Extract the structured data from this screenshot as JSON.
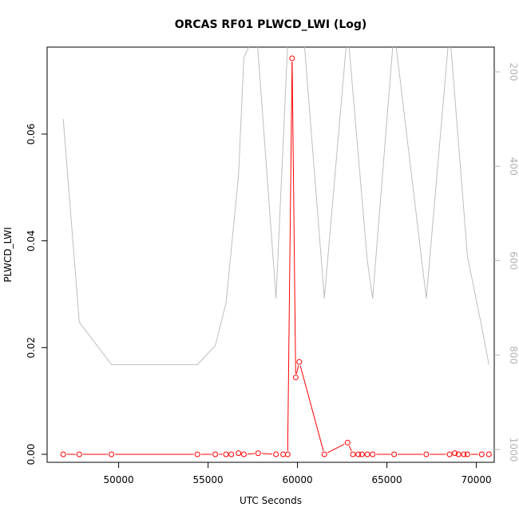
{
  "chart_data": {
    "type": "line",
    "title": "ORCAS RF01 PLWCD_LWI (Log)",
    "xlabel": "UTC Seconds",
    "ylabel": "PLWCD_LWI",
    "xlim": [
      46000,
      71000
    ],
    "ylim": [
      -0.0015,
      0.0763
    ],
    "x_ticks": [
      50000,
      55000,
      60000,
      65000,
      70000
    ],
    "y_ticks": [
      0.0,
      0.02,
      0.04,
      0.06
    ],
    "y_tick_labels": [
      "0.00",
      "0.02",
      "0.04",
      "0.06"
    ],
    "y2_ticks": [
      200,
      400,
      600,
      800,
      1000
    ],
    "y2_tick_labels": [
      "200",
      "400",
      "600",
      "800",
      "1000"
    ],
    "grid": false,
    "series": [
      {
        "color": "#ff0000",
        "marker": "open-circle",
        "x": [
          46900,
          47800,
          49600,
          54400,
          55400,
          56000,
          56300,
          56700,
          57000,
          57800,
          58800,
          59200,
          59450,
          59700,
          59900,
          60100,
          61500,
          62800,
          63100,
          63400,
          63600,
          63900,
          64200,
          65400,
          67200,
          68500,
          68800,
          69000,
          69300,
          69500,
          70300,
          70700
        ],
        "y": [
          0.0,
          0.0,
          0.0,
          0.0,
          0.0,
          0.0,
          0.0,
          0.0002,
          0.0,
          0.0002,
          0.0,
          0.0,
          0.0,
          0.0742,
          0.0144,
          0.0173,
          0.0,
          0.0022,
          0.0,
          0.0,
          0.0,
          0.0,
          0.0,
          0.0,
          0.0,
          0.0,
          0.0002,
          0.0,
          0.0,
          0.0,
          0.0,
          0.0
        ]
      },
      {
        "color": "#bebebe",
        "axis": "right",
        "x": [
          46900,
          47800,
          49600,
          54400,
          55400,
          56000,
          56700,
          57000,
          57700,
          58800,
          59500,
          60300,
          61500,
          62800,
          63900,
          64200,
          65400,
          67200,
          68500,
          69500,
          70300,
          70700
        ],
        "y": [
          300,
          730,
          820,
          820,
          780,
          690,
          420,
          170,
          110,
          680,
          100,
          100,
          680,
          110,
          600,
          680,
          110,
          680,
          110,
          590,
          740,
          820
        ]
      }
    ]
  }
}
